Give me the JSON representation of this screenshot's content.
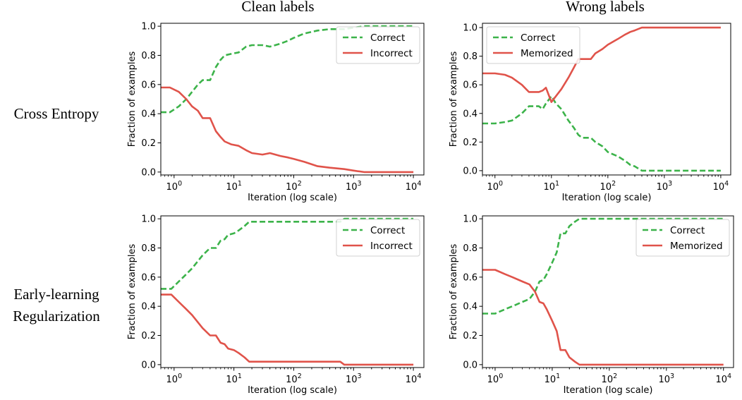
{
  "column_titles": [
    "Clean labels",
    "Wrong labels"
  ],
  "row_titles": [
    {
      "lines": [
        "Cross Entropy"
      ]
    },
    {
      "lines": [
        "Early-learning",
        "Regularization"
      ]
    }
  ],
  "colors": {
    "correct": "#3cb34a",
    "other": "#e0534a",
    "axis": "#000000"
  },
  "chart_data": [
    {
      "type": "line",
      "xscale": "log",
      "xlim": [
        0.6,
        15000
      ],
      "ylim": [
        -0.02,
        1.02
      ],
      "xlabel": "Iteration (log scale)",
      "ylabel": "Fraction of examples",
      "xticks": [
        1,
        10,
        100,
        1000,
        10000
      ],
      "xtick_labels": [
        {
          "base": "10",
          "exp": "0"
        },
        {
          "base": "10",
          "exp": "1"
        },
        {
          "base": "10",
          "exp": "2"
        },
        {
          "base": "10",
          "exp": "3"
        },
        {
          "base": "10",
          "exp": "4"
        }
      ],
      "yticks": [
        0.0,
        0.2,
        0.4,
        0.6,
        0.8,
        1.0
      ],
      "ytick_labels": [
        "0.0",
        "0.2",
        "0.4",
        "0.6",
        "0.8",
        "1.0"
      ],
      "legend_position": "top-right",
      "series": [
        {
          "name": "Correct",
          "style": "dashed",
          "color": "#3cb34a",
          "points": [
            [
              0.6,
              0.41
            ],
            [
              0.85,
              0.41
            ],
            [
              1.2,
              0.45
            ],
            [
              1.6,
              0.5
            ],
            [
              2,
              0.55
            ],
            [
              2.5,
              0.6
            ],
            [
              3,
              0.63
            ],
            [
              4,
              0.63
            ],
            [
              5,
              0.72
            ],
            [
              6,
              0.77
            ],
            [
              7,
              0.8
            ],
            [
              9,
              0.81
            ],
            [
              12,
              0.82
            ],
            [
              16,
              0.86
            ],
            [
              20,
              0.87
            ],
            [
              30,
              0.87
            ],
            [
              40,
              0.86
            ],
            [
              60,
              0.88
            ],
            [
              80,
              0.9
            ],
            [
              100,
              0.92
            ],
            [
              150,
              0.95
            ],
            [
              250,
              0.97
            ],
            [
              400,
              0.98
            ],
            [
              700,
              0.98
            ],
            [
              1000,
              0.99
            ],
            [
              1500,
              1.0
            ],
            [
              10000,
              1.0
            ]
          ]
        },
        {
          "name": "Incorrect",
          "style": "solid",
          "color": "#e0534a",
          "points": [
            [
              0.6,
              0.58
            ],
            [
              0.85,
              0.58
            ],
            [
              1.2,
              0.55
            ],
            [
              1.6,
              0.5
            ],
            [
              2,
              0.45
            ],
            [
              2.5,
              0.42
            ],
            [
              3,
              0.37
            ],
            [
              4,
              0.37
            ],
            [
              5,
              0.28
            ],
            [
              6,
              0.24
            ],
            [
              7,
              0.21
            ],
            [
              9,
              0.19
            ],
            [
              12,
              0.18
            ],
            [
              16,
              0.15
            ],
            [
              20,
              0.13
            ],
            [
              30,
              0.12
            ],
            [
              40,
              0.13
            ],
            [
              60,
              0.11
            ],
            [
              80,
              0.1
            ],
            [
              100,
              0.09
            ],
            [
              150,
              0.07
            ],
            [
              250,
              0.04
            ],
            [
              400,
              0.03
            ],
            [
              700,
              0.02
            ],
            [
              1000,
              0.01
            ],
            [
              1500,
              0.0
            ],
            [
              10000,
              0.0
            ]
          ]
        }
      ]
    },
    {
      "type": "line",
      "xscale": "log",
      "xlim": [
        0.6,
        15000
      ],
      "ylim": [
        -0.03,
        1.03
      ],
      "xlabel": "Iteration (log scale)",
      "ylabel": "Fraction of examples",
      "xticks": [
        1,
        10,
        100,
        1000,
        10000
      ],
      "xtick_labels": [
        {
          "base": "10",
          "exp": "0"
        },
        {
          "base": "10",
          "exp": "1"
        },
        {
          "base": "10",
          "exp": "2"
        },
        {
          "base": "10",
          "exp": "3"
        },
        {
          "base": "10",
          "exp": "4"
        }
      ],
      "yticks": [
        0.0,
        0.2,
        0.4,
        0.6,
        0.8,
        1.0
      ],
      "ytick_labels": [
        "0.0",
        "0.2",
        "0.4",
        "0.6",
        "0.8",
        "1.0"
      ],
      "legend_position": "top-left",
      "series": [
        {
          "name": "Correct",
          "style": "dashed",
          "color": "#3cb34a",
          "points": [
            [
              0.6,
              0.33
            ],
            [
              1,
              0.33
            ],
            [
              1.5,
              0.34
            ],
            [
              2,
              0.35
            ],
            [
              3,
              0.4
            ],
            [
              4,
              0.45
            ],
            [
              6,
              0.45
            ],
            [
              7,
              0.43
            ],
            [
              8,
              0.47
            ],
            [
              10,
              0.52
            ],
            [
              12,
              0.47
            ],
            [
              15,
              0.43
            ],
            [
              20,
              0.35
            ],
            [
              25,
              0.3
            ],
            [
              30,
              0.25
            ],
            [
              35,
              0.23
            ],
            [
              50,
              0.23
            ],
            [
              60,
              0.2
            ],
            [
              80,
              0.17
            ],
            [
              100,
              0.13
            ],
            [
              150,
              0.1
            ],
            [
              200,
              0.07
            ],
            [
              250,
              0.04
            ],
            [
              300,
              0.03
            ],
            [
              400,
              0.0
            ],
            [
              10000,
              0.0
            ]
          ]
        },
        {
          "name": "Memorized",
          "style": "solid",
          "color": "#e0534a",
          "points": [
            [
              0.6,
              0.68
            ],
            [
              1,
              0.68
            ],
            [
              1.5,
              0.67
            ],
            [
              2,
              0.65
            ],
            [
              3,
              0.6
            ],
            [
              4,
              0.55
            ],
            [
              6,
              0.55
            ],
            [
              7,
              0.56
            ],
            [
              8,
              0.58
            ],
            [
              10,
              0.48
            ],
            [
              12,
              0.52
            ],
            [
              15,
              0.57
            ],
            [
              20,
              0.65
            ],
            [
              25,
              0.72
            ],
            [
              30,
              0.78
            ],
            [
              35,
              0.78
            ],
            [
              50,
              0.78
            ],
            [
              60,
              0.82
            ],
            [
              80,
              0.85
            ],
            [
              100,
              0.88
            ],
            [
              150,
              0.92
            ],
            [
              200,
              0.95
            ],
            [
              250,
              0.97
            ],
            [
              300,
              0.98
            ],
            [
              400,
              1.0
            ],
            [
              10000,
              1.0
            ]
          ]
        }
      ]
    },
    {
      "type": "line",
      "xscale": "log",
      "xlim": [
        0.6,
        15000
      ],
      "ylim": [
        -0.02,
        1.02
      ],
      "xlabel": "Iteration (log scale)",
      "ylabel": "Fraction of examples",
      "xticks": [
        1,
        10,
        100,
        1000,
        10000
      ],
      "xtick_labels": [
        {
          "base": "10",
          "exp": "0"
        },
        {
          "base": "10",
          "exp": "1"
        },
        {
          "base": "10",
          "exp": "2"
        },
        {
          "base": "10",
          "exp": "3"
        },
        {
          "base": "10",
          "exp": "4"
        }
      ],
      "yticks": [
        0.0,
        0.2,
        0.4,
        0.6,
        0.8,
        1.0
      ],
      "ytick_labels": [
        "0.0",
        "0.2",
        "0.4",
        "0.6",
        "0.8",
        "1.0"
      ],
      "legend_position": "top-right",
      "series": [
        {
          "name": "Correct",
          "style": "dashed",
          "color": "#3cb34a",
          "points": [
            [
              0.6,
              0.52
            ],
            [
              0.9,
              0.52
            ],
            [
              1.2,
              0.57
            ],
            [
              1.6,
              0.62
            ],
            [
              2,
              0.66
            ],
            [
              3,
              0.75
            ],
            [
              4,
              0.8
            ],
            [
              5,
              0.8
            ],
            [
              6,
              0.85
            ],
            [
              7,
              0.86
            ],
            [
              8,
              0.89
            ],
            [
              10,
              0.9
            ],
            [
              12,
              0.92
            ],
            [
              15,
              0.95
            ],
            [
              18,
              0.98
            ],
            [
              25,
              0.98
            ],
            [
              100,
              0.98
            ],
            [
              600,
              0.98
            ],
            [
              700,
              1.0
            ],
            [
              10000,
              1.0
            ]
          ]
        },
        {
          "name": "Incorrect",
          "style": "solid",
          "color": "#e0534a",
          "points": [
            [
              0.6,
              0.48
            ],
            [
              0.9,
              0.48
            ],
            [
              1.2,
              0.43
            ],
            [
              1.6,
              0.38
            ],
            [
              2,
              0.34
            ],
            [
              3,
              0.25
            ],
            [
              4,
              0.2
            ],
            [
              5,
              0.2
            ],
            [
              6,
              0.15
            ],
            [
              7,
              0.14
            ],
            [
              8,
              0.11
            ],
            [
              10,
              0.1
            ],
            [
              12,
              0.08
            ],
            [
              15,
              0.05
            ],
            [
              18,
              0.02
            ],
            [
              25,
              0.02
            ],
            [
              100,
              0.02
            ],
            [
              600,
              0.02
            ],
            [
              700,
              0.0
            ],
            [
              10000,
              0.0
            ]
          ]
        }
      ]
    },
    {
      "type": "line",
      "xscale": "log",
      "xlim": [
        0.6,
        15000
      ],
      "ylim": [
        -0.02,
        1.02
      ],
      "xlabel": "Iteration (log scale)",
      "ylabel": "Fraction of examples",
      "xticks": [
        1,
        10,
        100,
        1000,
        10000
      ],
      "xtick_labels": [
        {
          "base": "10",
          "exp": "0"
        },
        {
          "base": "10",
          "exp": "1"
        },
        {
          "base": "10",
          "exp": "2"
        },
        {
          "base": "10",
          "exp": "3"
        },
        {
          "base": "10",
          "exp": "4"
        }
      ],
      "yticks": [
        0.0,
        0.2,
        0.4,
        0.6,
        0.8,
        1.0
      ],
      "ytick_labels": [
        "0.0",
        "0.2",
        "0.4",
        "0.6",
        "0.8",
        "1.0"
      ],
      "legend_position": "top-right",
      "series": [
        {
          "name": "Correct",
          "style": "dashed",
          "color": "#3cb34a",
          "points": [
            [
              0.6,
              0.35
            ],
            [
              1,
              0.35
            ],
            [
              1.5,
              0.38
            ],
            [
              2,
              0.4
            ],
            [
              3,
              0.43
            ],
            [
              4,
              0.45
            ],
            [
              5,
              0.5
            ],
            [
              6,
              0.57
            ],
            [
              7,
              0.58
            ],
            [
              8,
              0.62
            ],
            [
              10,
              0.7
            ],
            [
              12,
              0.77
            ],
            [
              14,
              0.9
            ],
            [
              17,
              0.9
            ],
            [
              20,
              0.95
            ],
            [
              25,
              0.98
            ],
            [
              30,
              1.0
            ],
            [
              10000,
              1.0
            ]
          ]
        },
        {
          "name": "Memorized",
          "style": "solid",
          "color": "#e0534a",
          "points": [
            [
              0.6,
              0.65
            ],
            [
              1,
              0.65
            ],
            [
              1.5,
              0.62
            ],
            [
              2,
              0.6
            ],
            [
              3,
              0.57
            ],
            [
              4,
              0.55
            ],
            [
              5,
              0.5
            ],
            [
              6,
              0.43
            ],
            [
              7,
              0.42
            ],
            [
              8,
              0.38
            ],
            [
              10,
              0.3
            ],
            [
              12,
              0.23
            ],
            [
              14,
              0.1
            ],
            [
              17,
              0.1
            ],
            [
              20,
              0.05
            ],
            [
              25,
              0.02
            ],
            [
              30,
              0.0
            ],
            [
              10000,
              0.0
            ]
          ]
        }
      ]
    }
  ]
}
